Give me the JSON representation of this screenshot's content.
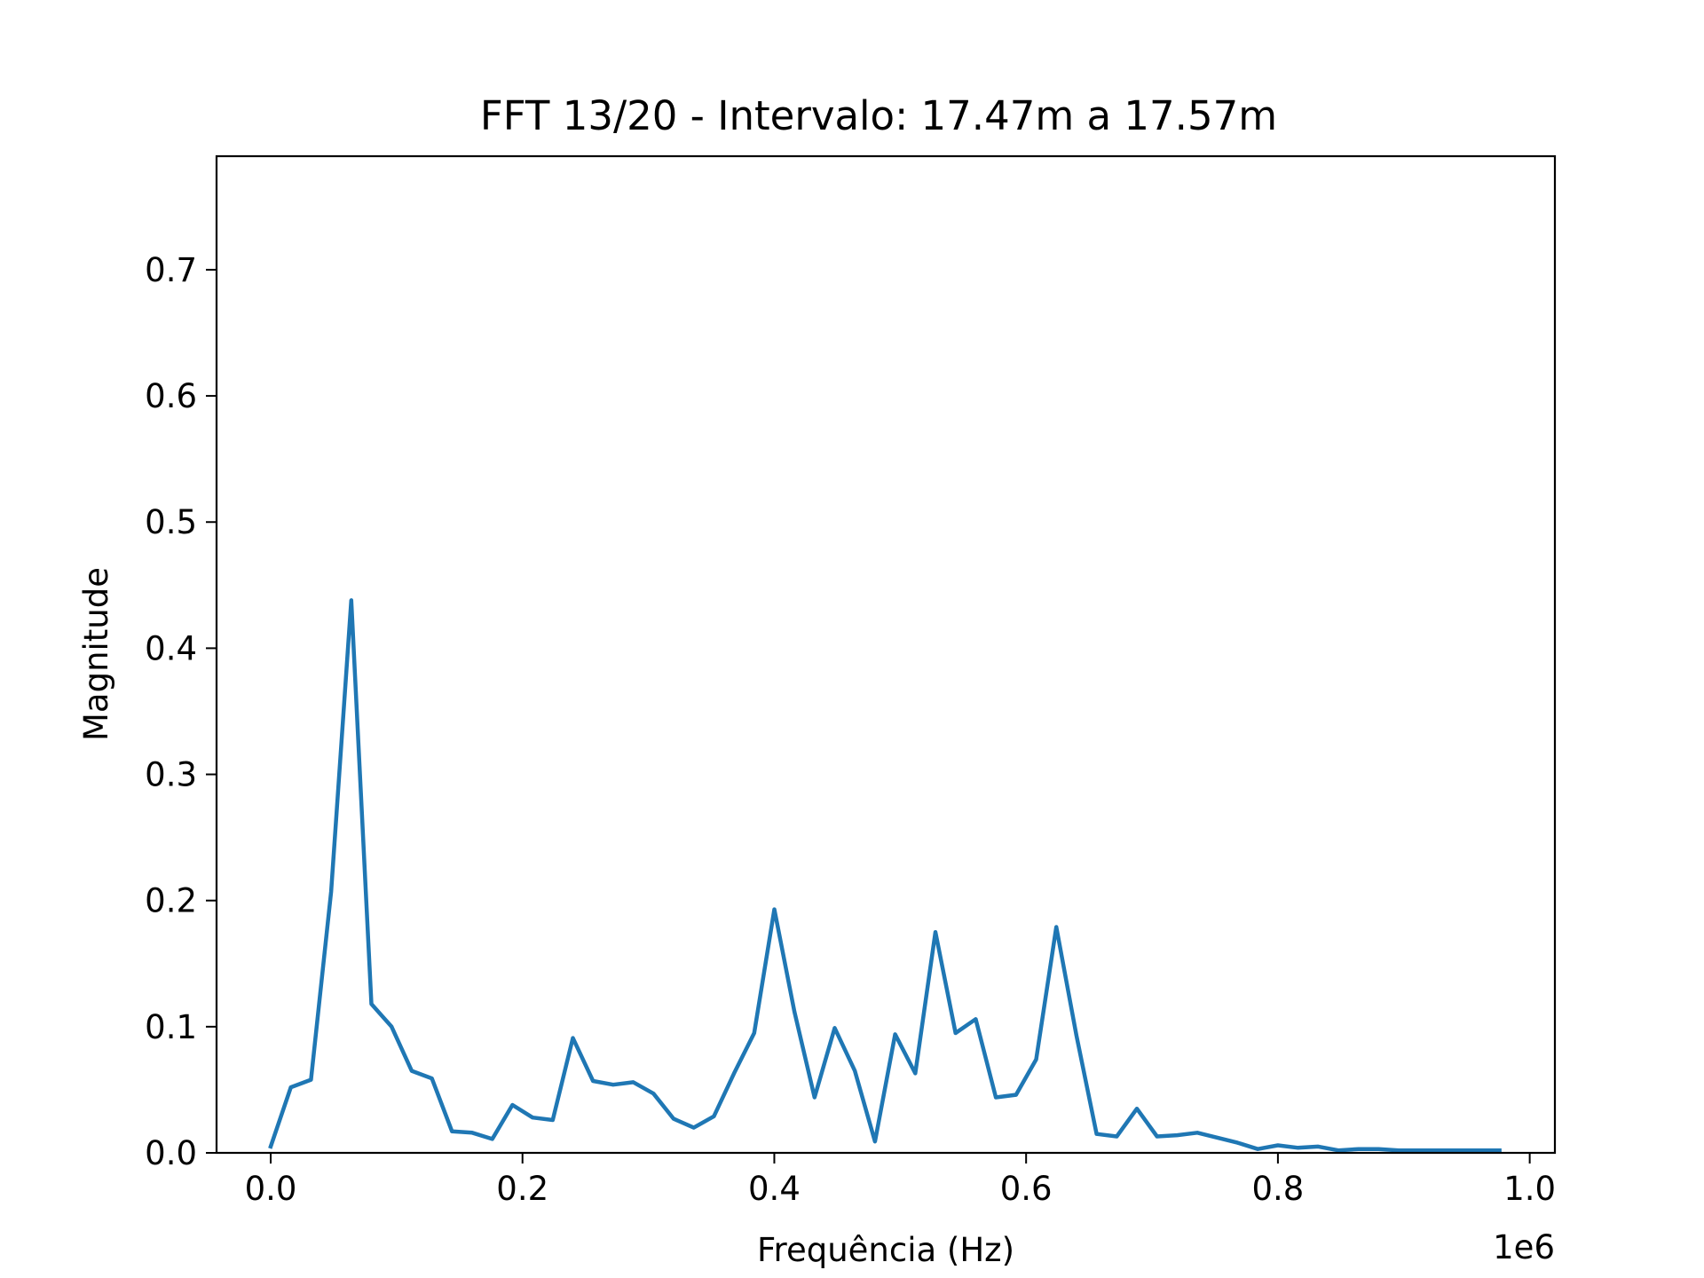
{
  "chart_data": {
    "type": "line",
    "title": "FFT 13/20 - Intervalo: 17.47m a 17.57m",
    "xlabel": "Frequência (Hz)",
    "ylabel": "Magnitude",
    "x_offset_label": "1e6",
    "xlim": [
      -0.043,
      1.02
    ],
    "ylim": [
      0,
      0.79
    ],
    "x_ticks": [
      0.0,
      0.2,
      0.4,
      0.6,
      0.8,
      1.0
    ],
    "x_tick_labels": [
      "0.0",
      "0.2",
      "0.4",
      "0.6",
      "0.8",
      "1.0"
    ],
    "y_ticks": [
      0.0,
      0.1,
      0.2,
      0.3,
      0.4,
      0.5,
      0.6,
      0.7
    ],
    "y_tick_labels": [
      "0.0",
      "0.1",
      "0.2",
      "0.3",
      "0.4",
      "0.5",
      "0.6",
      "0.7"
    ],
    "grid": false,
    "line_color": "#1f77b4",
    "x": [
      0.0,
      0.016,
      0.032,
      0.048,
      0.064,
      0.08,
      0.096,
      0.112,
      0.128,
      0.144,
      0.16,
      0.176,
      0.192,
      0.208,
      0.224,
      0.24,
      0.256,
      0.272,
      0.288,
      0.304,
      0.32,
      0.336,
      0.352,
      0.368,
      0.384,
      0.4,
      0.416,
      0.432,
      0.448,
      0.464,
      0.48,
      0.496,
      0.512,
      0.528,
      0.544,
      0.56,
      0.576,
      0.592,
      0.608,
      0.624,
      0.64,
      0.656,
      0.672,
      0.688,
      0.704,
      0.72,
      0.736,
      0.752,
      0.768,
      0.784,
      0.8,
      0.816,
      0.832,
      0.848,
      0.864,
      0.88,
      0.896,
      0.912,
      0.928,
      0.944,
      0.96,
      0.976
    ],
    "values": [
      0.005,
      0.052,
      0.058,
      0.207,
      0.438,
      0.118,
      0.1,
      0.065,
      0.059,
      0.017,
      0.016,
      0.011,
      0.038,
      0.028,
      0.026,
      0.091,
      0.057,
      0.054,
      0.056,
      0.047,
      0.027,
      0.02,
      0.029,
      0.063,
      0.095,
      0.193,
      0.112,
      0.044,
      0.099,
      0.065,
      0.009,
      0.094,
      0.063,
      0.175,
      0.095,
      0.106,
      0.044,
      0.046,
      0.074,
      0.179,
      0.093,
      0.015,
      0.013,
      0.035,
      0.013,
      0.014,
      0.016,
      0.012,
      0.008,
      0.003,
      0.006,
      0.004,
      0.005,
      0.002,
      0.003,
      0.003,
      0.002,
      0.002,
      0.002,
      0.002,
      0.002,
      0.002
    ]
  }
}
